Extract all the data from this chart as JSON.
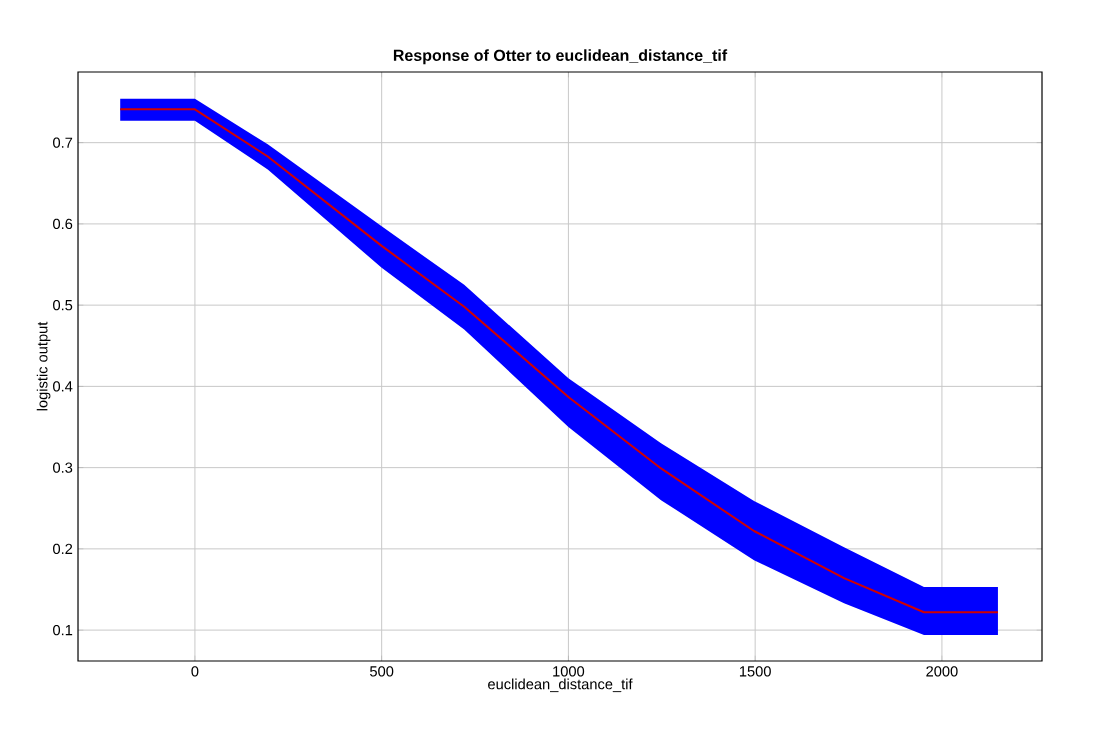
{
  "chart_data": {
    "type": "line",
    "title": "Response of Otter to euclidean_distance_tif",
    "xlabel": "euclidean_distance_tif",
    "ylabel": "logistic output",
    "x": [
      -200,
      0,
      195,
      500,
      721,
      1000,
      1248,
      1497,
      1738,
      1952,
      2150
    ],
    "series": [
      {
        "color": "#d00000",
        "values": [
          0.741,
          0.741,
          0.683,
          0.573,
          0.498,
          0.387,
          0.299,
          0.222,
          0.164,
          0.122,
          0.122
        ],
        "upper": [
          0.754,
          0.754,
          0.698,
          0.597,
          0.525,
          0.41,
          0.33,
          0.259,
          0.202,
          0.153,
          0.153
        ],
        "lower": [
          0.727,
          0.727,
          0.667,
          0.546,
          0.47,
          0.35,
          0.26,
          0.186,
          0.133,
          0.094,
          0.094
        ]
      }
    ],
    "xlim": [
      -313,
      2268
    ],
    "ylim": [
      0.062,
      0.787
    ],
    "xticks": [
      0,
      500,
      1000,
      1500,
      2000
    ],
    "yticks": [
      0.1,
      0.2,
      0.3,
      0.4,
      0.5,
      0.6,
      0.7
    ],
    "grid": true,
    "marker": "none",
    "line_style": "solid"
  }
}
